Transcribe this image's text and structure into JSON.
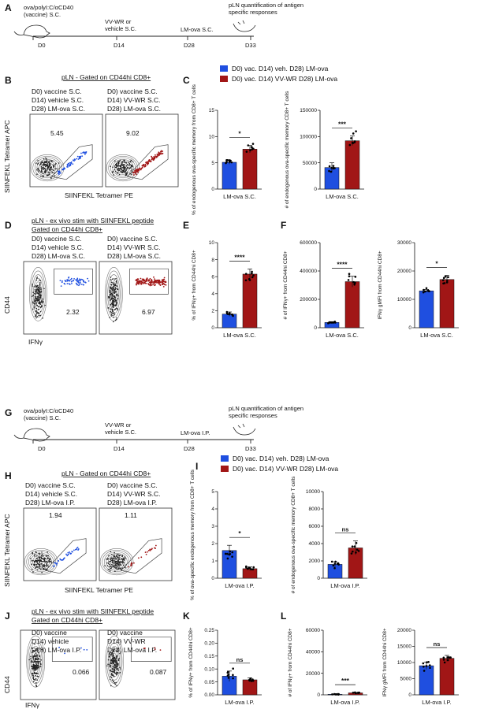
{
  "colors": {
    "blue": "#1f4fe0",
    "red": "#a11616",
    "grey": "#888888"
  },
  "panel_A": {
    "letter": "A",
    "step_vaccine": "ova/polyI:C/αCD40\n(vaccine) S.C.",
    "step_vvwr": "VV-WR or\nvehicle S.C.",
    "step_lmova": "LM-ova S.C.",
    "step_quant": "pLN quantification of antigen\nspecific responses",
    "days": [
      "D0",
      "D14",
      "D28",
      "D33"
    ]
  },
  "panel_B": {
    "letter": "B",
    "title": "pLN - Gated on CD44hi CD8+",
    "left_lines": [
      "D0) vaccine S.C.",
      "D14) vehicle S.C.",
      "D28) LM-ova S.C."
    ],
    "right_lines": [
      "D0) vaccine S.C.",
      "D14) VV-WR S.C.",
      "D28) LM-ova S.C."
    ],
    "left_pct": "5.45",
    "right_pct": "9.02",
    "xlabel": "SIINFEKL Tetramer PE",
    "ylabel": "SIINFEKL Tetramer APC"
  },
  "legend_top": {
    "entries": [
      "D0) vac. D14) veh. D28) LM-ova",
      "D0) vac. D14) VV-WR D28) LM-ova"
    ]
  },
  "panel_D": {
    "letter": "D",
    "title": "pLN - ex vivo stim with SIINFEKL peptide",
    "title2": "Gated on CD44hi CD8+",
    "left_lines": [
      "D0) vaccine S.C.",
      "D14) vehicle S.C.",
      "D28) LM-ova S.C."
    ],
    "right_lines": [
      "D0) vaccine S.C.",
      "D14) VV-WR S.C.",
      "D28) LM-ova S.C."
    ],
    "left_pct": "2.32",
    "right_pct": "6.97",
    "xlabel": "IFNγ",
    "ylabel": "CD44"
  },
  "panel_G": {
    "letter": "G",
    "step_vaccine": "ova/polyI:C/αCD40\n(vaccine) S.C.",
    "step_vvwr": "VV-WR or\nvehicle S.C.",
    "step_lmova": "LM-ova I.P.",
    "step_quant": "pLN quantification of antigen\nspecific responses",
    "days": [
      "D0",
      "D14",
      "D28",
      "D33"
    ]
  },
  "panel_H": {
    "letter": "H",
    "title": "pLN - Gated on CD44hi CD8+",
    "left_lines": [
      "D0) vaccine S.C.",
      "D14) vehicle S.C.",
      "D28) LM-ova I.P."
    ],
    "right_lines": [
      "D0) vaccine S.C.",
      "D14) VV-WR S.C.",
      "D28) LM-ova I.P."
    ],
    "left_pct": "1.94",
    "right_pct": "1.11",
    "xlabel": "SIINFEKL Tetramer PE",
    "ylabel": "SIINFEKL Tetramer APC"
  },
  "legend_bottom": {
    "entries": [
      "D0) vac. D14) veh. D28) LM-ova",
      "D0) vac. D14) VV-WR D28) LM-ova"
    ]
  },
  "panel_J": {
    "letter": "J",
    "title": "pLN - ex vivo stim with SIINFEKL peptide",
    "title2": "Gated on CD44hi CD8+",
    "left_lines": [
      "D0) vaccine",
      "D14) vehicle",
      "D28) LM-ova I.P."
    ],
    "right_lines": [
      "D0) vaccine",
      "D14) VV-WR",
      "D28) LM-ova I.P."
    ],
    "left_pct": "0.066",
    "right_pct": "0.087",
    "xlabel": "IFNγ",
    "ylabel": "CD44"
  },
  "chart_data": [
    {
      "id": "C1",
      "letter": "C",
      "type": "bar",
      "categories": [
        "vehicle",
        "VV-WR"
      ],
      "values": [
        5.1,
        7.6
      ],
      "errors": [
        0.35,
        0.7
      ],
      "ylim": [
        0,
        15
      ],
      "yticks": [
        "0",
        "5",
        "10",
        "15"
      ],
      "ylabel": "% of endogenous ova-specific memory from CD8+ T cells",
      "xlabel": "LM-ova S.C.",
      "sig": "*"
    },
    {
      "id": "C2",
      "type": "bar",
      "categories": [
        "vehicle",
        "VV-WR"
      ],
      "values": [
        41000,
        92000
      ],
      "errors": [
        9000,
        9000
      ],
      "ylim": [
        0,
        150000
      ],
      "yticks": [
        "0",
        "50000",
        "100000",
        "150000"
      ],
      "ylabel": "# of endogenous ova-specific memory CD8+ T cells",
      "xlabel": "LM-ova S.C.",
      "sig": "***"
    },
    {
      "id": "E",
      "letter": "E",
      "type": "bar",
      "categories": [
        "vehicle",
        "VV-WR"
      ],
      "values": [
        1.6,
        6.3
      ],
      "errors": [
        0.25,
        0.6
      ],
      "ylim": [
        0,
        10
      ],
      "yticks": [
        "0",
        "2",
        "4",
        "6",
        "8",
        "10"
      ],
      "ylabel": "% of IFNγ+ from CD44hi CD8+",
      "xlabel": "LM-ova S.C.",
      "sig": "****"
    },
    {
      "id": "F1",
      "letter": "F",
      "type": "bar",
      "categories": [
        "vehicle",
        "VV-WR"
      ],
      "values": [
        37000,
        325000
      ],
      "errors": [
        6000,
        38000
      ],
      "ylim": [
        0,
        600000
      ],
      "yticks": [
        "0",
        "200000",
        "400000",
        "600000"
      ],
      "ylabel": "# of IFNγ+ from CD44hi CD8+",
      "xlabel": "LM-ova S.C.",
      "sig": "****"
    },
    {
      "id": "F2",
      "type": "bar",
      "categories": [
        "vehicle",
        "VV-WR"
      ],
      "values": [
        13000,
        17000
      ],
      "errors": [
        500,
        1500
      ],
      "ylim": [
        0,
        30000
      ],
      "yticks": [
        "0",
        "10000",
        "20000",
        "30000"
      ],
      "ylabel": "IFNγ gMFI from CD44hi CD8+",
      "xlabel": "LM-ova S.C.",
      "sig": "*"
    },
    {
      "id": "I1",
      "letter": "I",
      "type": "bar",
      "categories": [
        "vehicle",
        "VV-WR"
      ],
      "values": [
        1.6,
        0.55
      ],
      "errors": [
        0.3,
        0.1
      ],
      "ylim": [
        0,
        5
      ],
      "yticks": [
        "0",
        "1",
        "2",
        "3",
        "4",
        "5"
      ],
      "ylabel": "% of ova-specific endogenous memory from CD8+ T cells",
      "xlabel": "LM-ova I.P.",
      "sig": "*"
    },
    {
      "id": "I2",
      "type": "bar",
      "categories": [
        "vehicle",
        "VV-WR"
      ],
      "values": [
        1600,
        3500
      ],
      "errors": [
        300,
        800
      ],
      "ylim": [
        0,
        10000
      ],
      "yticks": [
        "0",
        "2000",
        "4000",
        "6000",
        "8000",
        "10000"
      ],
      "ylabel": "# of endogenous ova-specific memory CD8+ T cells",
      "xlabel": "LM-ova I.P.",
      "sig": "ns"
    },
    {
      "id": "K",
      "letter": "K",
      "type": "bar",
      "categories": [
        "vehicle",
        "VV-WR"
      ],
      "values": [
        0.072,
        0.058
      ],
      "errors": [
        0.02,
        0.008
      ],
      "ylim": [
        0,
        0.25
      ],
      "yticks": [
        "0.00",
        "0.05",
        "0.10",
        "0.15",
        "0.20",
        "0.25"
      ],
      "ylabel": "% of IFNγ+ from CD44hi CD8+",
      "xlabel": "LM-ova I.P.",
      "sig": "ns"
    },
    {
      "id": "L1",
      "letter": "L",
      "type": "bar",
      "categories": [
        "vehicle",
        "VV-WR"
      ],
      "values": [
        500,
        1800
      ],
      "errors": [
        200,
        300
      ],
      "ylim": [
        0,
        60000
      ],
      "yticks": [
        "0",
        "20000",
        "40000",
        "60000"
      ],
      "ylabel": "# of IFNγ+ from CD44hi CD8+",
      "xlabel": "LM-ova I.P.",
      "sig": "***"
    },
    {
      "id": "L2",
      "type": "bar",
      "categories": [
        "vehicle",
        "VV-WR"
      ],
      "values": [
        9000,
        11300
      ],
      "errors": [
        1100,
        900
      ],
      "ylim": [
        0,
        20000
      ],
      "yticks": [
        "0",
        "5000",
        "10000",
        "15000",
        "20000"
      ],
      "ylabel": "IFNγ gMFI from CD44hi CD8+",
      "xlabel": "LM-ova I.P.",
      "sig": "ns"
    }
  ]
}
